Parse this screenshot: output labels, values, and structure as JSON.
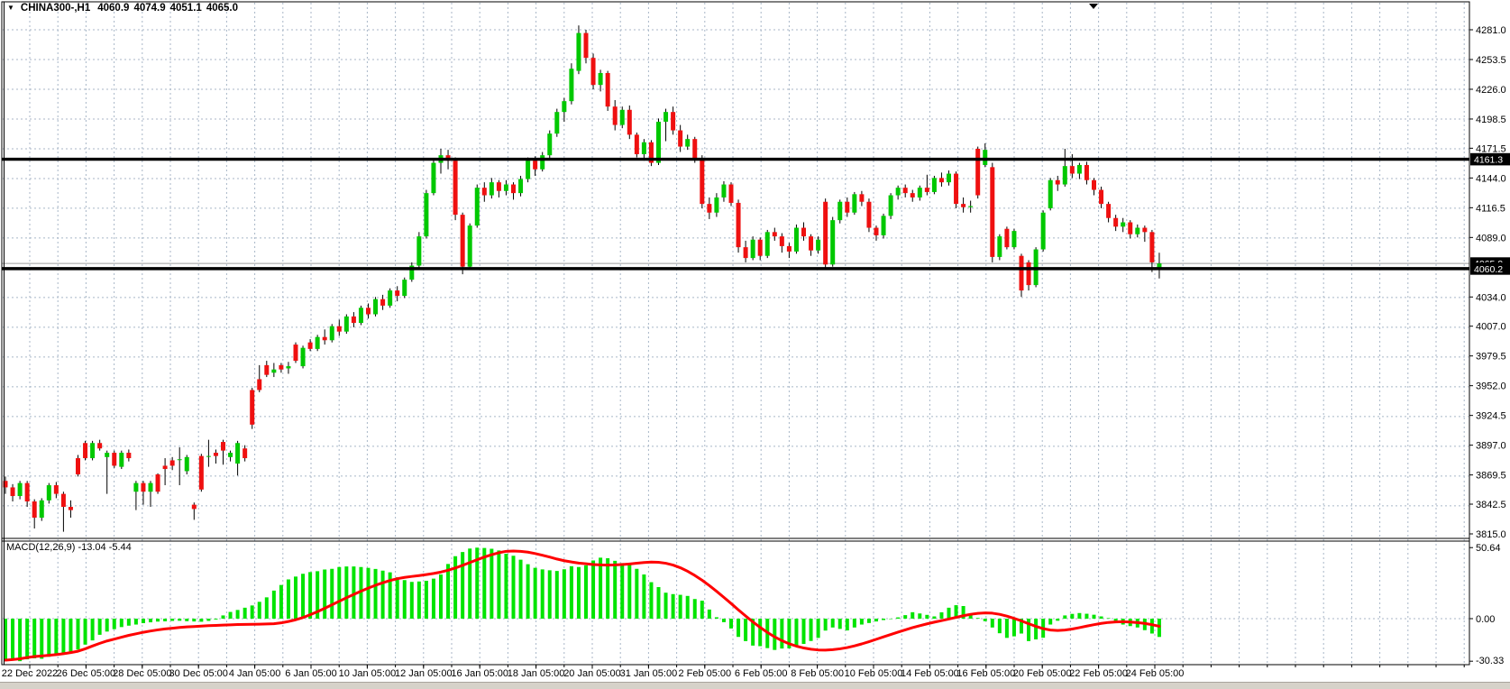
{
  "title_bar": {
    "dropdown_icon": "▼",
    "symbol_period": "CHINA300-,H1",
    "open": "4060.9",
    "high": "4074.9",
    "low": "4051.1",
    "close": "4065.0"
  },
  "indicator": {
    "label": "MACD(12,26,9) -13.04 -5.44"
  },
  "colors": {
    "background": "#ffffff",
    "grid": "#a8b6c7",
    "bull": "#00c800",
    "bear": "#ef1010",
    "wick": "#000000",
    "macd_histogram": "#00e400",
    "macd_signal": "#ff0000",
    "hline": "#000000",
    "last_price_line": "#9e9e9e",
    "badge_bg": "#000000",
    "badge_fg": "#ffffff",
    "window_strip": "#d6d2c9"
  },
  "price_axis": {
    "tick_texts": [
      "4281.0",
      "4253.5",
      "4226.0",
      "4198.5",
      "4171.5",
      "4144.0",
      "4116.5",
      "4089.0",
      "4034.0",
      "4007.0",
      "3979.5",
      "3952.0",
      "3924.5",
      "3897.0",
      "3869.5",
      "3842.5",
      "3815.0"
    ],
    "tick_values": [
      4281.0,
      4253.5,
      4226.0,
      4198.5,
      4171.5,
      4144.0,
      4116.5,
      4089.0,
      4034.0,
      4007.0,
      3979.5,
      3952.0,
      3924.5,
      3897.0,
      3869.5,
      3842.5,
      3815.0
    ]
  },
  "macd_axis": {
    "tick_texts": [
      "50.64",
      "0.00",
      "-30.33"
    ],
    "tick_values": [
      50.64,
      0.0,
      -30.33
    ]
  },
  "time_axis": {
    "labels": [
      "22 Dec 2022",
      "26 Dec 05:00",
      "28 Dec 05:00",
      "30 Dec 05:00",
      "4 Jan 05:00",
      "6 Jan 05:00",
      "10 Jan 05:00",
      "12 Jan 05:00",
      "16 Jan 05:00",
      "18 Jan 05:00",
      "20 Jan 05:00",
      "31 Jan 05:00",
      "2 Feb 05:00",
      "6 Feb 05:00",
      "8 Feb 05:00",
      "10 Feb 05:00",
      "14 Feb 05:00",
      "16 Feb 05:00",
      "20 Feb 05:00",
      "22 Feb 05:00",
      "24 Feb 05:00"
    ]
  },
  "chart_data": {
    "type": "candlestick+macd",
    "symbol": "CHINA300",
    "timeframe": "H1",
    "title": "CHINA300-,H1  4060.9 4074.9 4051.1 4065.0",
    "price_range_visible": [
      3815.0,
      4281.0
    ],
    "price_grid_step": 27.5,
    "macd_range": [
      -30.33,
      50.64
    ],
    "grid": true,
    "horizontal_lines": [
      {
        "label": "4161.3",
        "price": 4161.3,
        "style": "thick-black"
      },
      {
        "label": "4065.0",
        "price": 4065.0,
        "style": "thin-gray-last-price"
      },
      {
        "label": "4060.2",
        "price": 4060.2,
        "style": "thick-black"
      }
    ],
    "candles": [
      [
        3864,
        3868,
        3852,
        3858
      ],
      [
        3858,
        3861,
        3845,
        3850
      ],
      [
        3850,
        3864,
        3847,
        3862
      ],
      [
        3862,
        3864,
        3840,
        3845
      ],
      [
        3845,
        3847,
        3820,
        3830
      ],
      [
        3830,
        3848,
        3827,
        3846
      ],
      [
        3846,
        3862,
        3843,
        3860
      ],
      [
        3860,
        3863,
        3848,
        3852
      ],
      [
        3852,
        3854,
        3817,
        3840
      ],
      [
        3840,
        3846,
        3830,
        3837
      ],
      [
        3885,
        3888,
        3868,
        3870
      ],
      [
        3899,
        3901,
        3883,
        3885
      ],
      [
        3885,
        3901,
        3883,
        3899
      ],
      [
        3899,
        3902,
        3892,
        3894
      ],
      [
        3886,
        3892,
        3852,
        3890
      ],
      [
        3890,
        3892,
        3876,
        3878
      ],
      [
        3877,
        3892,
        3875,
        3890
      ],
      [
        3890,
        3893,
        3882,
        3885
      ],
      [
        3854,
        3864,
        3837,
        3862
      ],
      [
        3862,
        3864,
        3842,
        3854
      ],
      [
        3854,
        3864,
        3840,
        3862
      ],
      [
        3870,
        3871,
        3852,
        3854
      ],
      [
        3878,
        3885,
        3860,
        3875
      ],
      [
        3883,
        3886,
        3874,
        3878
      ],
      [
        3884,
        3895,
        3860,
        3884
      ],
      [
        3873,
        3888,
        3870,
        3886
      ],
      [
        3842,
        3844,
        3828,
        3838
      ],
      [
        3887,
        3889,
        3854,
        3856
      ],
      [
        3887,
        3902,
        3877,
        3887
      ],
      [
        3890,
        3893,
        3880,
        3887
      ],
      [
        3900,
        3902,
        3879,
        3892
      ],
      [
        3886,
        3892,
        3882,
        3890
      ],
      [
        3880,
        3901,
        3869,
        3899
      ],
      [
        3894,
        3897,
        3882,
        3885
      ],
      [
        3948,
        3950,
        3912,
        3916
      ],
      [
        3958,
        3971,
        3946,
        3948
      ],
      [
        3971,
        3975,
        3960,
        3962
      ],
      [
        3964,
        3973,
        3960,
        3967
      ],
      [
        3971,
        3973,
        3964,
        3967
      ],
      [
        3968,
        3974,
        3963,
        3970
      ],
      [
        3990,
        3992,
        3973,
        3975
      ],
      [
        3970,
        3989,
        3968,
        3987
      ],
      [
        3992,
        3995,
        3984,
        3986
      ],
      [
        3986,
        3999,
        3984,
        3997
      ],
      [
        3997,
        4004,
        3990,
        3994
      ],
      [
        3994,
        4009,
        3992,
        4007
      ],
      [
        4007,
        4013,
        3998,
        4002
      ],
      [
        4002,
        4018,
        4000,
        4016
      ],
      [
        4016,
        4020,
        4006,
        4010
      ],
      [
        4010,
        4026,
        4008,
        4024
      ],
      [
        4024,
        4028,
        4014,
        4018
      ],
      [
        4018,
        4034,
        4016,
        4032
      ],
      [
        4032,
        4036,
        4022,
        4026
      ],
      [
        4026,
        4042,
        4024,
        4040
      ],
      [
        4040,
        4044,
        4030,
        4035
      ],
      [
        4035,
        4052,
        4033,
        4050
      ],
      [
        4050,
        4066,
        4048,
        4063
      ],
      [
        4063,
        4094,
        4060,
        4090
      ],
      [
        4090,
        4133,
        4088,
        4130
      ],
      [
        4130,
        4162,
        4128,
        4158
      ],
      [
        4158,
        4171,
        4148,
        4165
      ],
      [
        4165,
        4170,
        4152,
        4160
      ],
      [
        4160,
        4163,
        4105,
        4110
      ],
      [
        4110,
        4112,
        4055,
        4062
      ],
      [
        4062,
        4102,
        4060,
        4100
      ],
      [
        4100,
        4138,
        4098,
        4135
      ],
      [
        4135,
        4140,
        4122,
        4128
      ],
      [
        4128,
        4144,
        4125,
        4140
      ],
      [
        4140,
        4142,
        4126,
        4132
      ],
      [
        4132,
        4142,
        4128,
        4138
      ],
      [
        4138,
        4140,
        4124,
        4130
      ],
      [
        4130,
        4146,
        4127,
        4143
      ],
      [
        4143,
        4163,
        4140,
        4160
      ],
      [
        4160,
        4164,
        4146,
        4152
      ],
      [
        4152,
        4168,
        4150,
        4165
      ],
      [
        4165,
        4188,
        4162,
        4185
      ],
      [
        4185,
        4208,
        4182,
        4205
      ],
      [
        4205,
        4218,
        4196,
        4215
      ],
      [
        4215,
        4250,
        4212,
        4245
      ],
      [
        4243,
        4285,
        4240,
        4278
      ],
      [
        4278,
        4281,
        4250,
        4255
      ],
      [
        4255,
        4259,
        4226,
        4230
      ],
      [
        4230,
        4244,
        4224,
        4241
      ],
      [
        4241,
        4243,
        4206,
        4210
      ],
      [
        4210,
        4216,
        4188,
        4193
      ],
      [
        4193,
        4210,
        4190,
        4207
      ],
      [
        4207,
        4211,
        4180,
        4184
      ],
      [
        4184,
        4186,
        4163,
        4166
      ],
      [
        4166,
        4180,
        4160,
        4177
      ],
      [
        4177,
        4179,
        4155,
        4158
      ],
      [
        4158,
        4199,
        4156,
        4196
      ],
      [
        4196,
        4208,
        4178,
        4205
      ],
      [
        4205,
        4210,
        4184,
        4188
      ],
      [
        4188,
        4193,
        4168,
        4173
      ],
      [
        4173,
        4184,
        4170,
        4180
      ],
      [
        4180,
        4182,
        4158,
        4162
      ],
      [
        4162,
        4165,
        4116,
        4120
      ],
      [
        4120,
        4126,
        4106,
        4112
      ],
      [
        4112,
        4130,
        4108,
        4126
      ],
      [
        4126,
        4141,
        4122,
        4138
      ],
      [
        4138,
        4140,
        4118,
        4121
      ],
      [
        4121,
        4124,
        4075,
        4080
      ],
      [
        4080,
        4086,
        4066,
        4070
      ],
      [
        4070,
        4090,
        4068,
        4087
      ],
      [
        4087,
        4089,
        4068,
        4072
      ],
      [
        4072,
        4096,
        4070,
        4094
      ],
      [
        4094,
        4098,
        4086,
        4090
      ],
      [
        4090,
        4093,
        4075,
        4081
      ],
      [
        4081,
        4084,
        4070,
        4076
      ],
      [
        4076,
        4101,
        4074,
        4098
      ],
      [
        4098,
        4103,
        4086,
        4090
      ],
      [
        4090,
        4092,
        4072,
        4077
      ],
      [
        4077,
        4090,
        4074,
        4087
      ],
      [
        4122,
        4125,
        4060,
        4064
      ],
      [
        4064,
        4108,
        4062,
        4105
      ],
      [
        4105,
        4124,
        4102,
        4122
      ],
      [
        4122,
        4126,
        4108,
        4112
      ],
      [
        4112,
        4131,
        4110,
        4129
      ],
      [
        4129,
        4132,
        4118,
        4122
      ],
      [
        4122,
        4125,
        4094,
        4098
      ],
      [
        4098,
        4100,
        4086,
        4091
      ],
      [
        4091,
        4111,
        4088,
        4109
      ],
      [
        4109,
        4130,
        4106,
        4128
      ],
      [
        4128,
        4137,
        4124,
        4135
      ],
      [
        4135,
        4138,
        4126,
        4130
      ],
      [
        4130,
        4133,
        4122,
        4126
      ],
      [
        4126,
        4137,
        4123,
        4135
      ],
      [
        4135,
        4147,
        4128,
        4131
      ],
      [
        4131,
        4146,
        4129,
        4144
      ],
      [
        4144,
        4149,
        4136,
        4140
      ],
      [
        4140,
        4151,
        4137,
        4148
      ],
      [
        4148,
        4150,
        4116,
        4120
      ],
      [
        4120,
        4126,
        4112,
        4117
      ],
      [
        4117,
        4123,
        4112,
        4118
      ],
      [
        4171,
        4173,
        4125,
        4128
      ],
      [
        4156,
        4176,
        4154,
        4170
      ],
      [
        4154,
        4158,
        4066,
        4071
      ],
      [
        4071,
        4092,
        4068,
        4090
      ],
      [
        4097,
        4099,
        4078,
        4080
      ],
      [
        4080,
        4097,
        4078,
        4095
      ],
      [
        4072,
        4074,
        4034,
        4040
      ],
      [
        4066,
        4068,
        4040,
        4045
      ],
      [
        4045,
        4080,
        4043,
        4078
      ],
      [
        4078,
        4114,
        4076,
        4112
      ],
      [
        4116,
        4144,
        4114,
        4142
      ],
      [
        4142,
        4146,
        4132,
        4138
      ],
      [
        4138,
        4171,
        4136,
        4155
      ],
      [
        4155,
        4166,
        4144,
        4148
      ],
      [
        4148,
        4158,
        4143,
        4156
      ],
      [
        4156,
        4159,
        4138,
        4142
      ],
      [
        4142,
        4144,
        4128,
        4133
      ],
      [
        4133,
        4136,
        4116,
        4120
      ],
      [
        4120,
        4122,
        4103,
        4107
      ],
      [
        4107,
        4110,
        4095,
        4099
      ],
      [
        4099,
        4107,
        4094,
        4103
      ],
      [
        4103,
        4105,
        4088,
        4092
      ],
      [
        4092,
        4101,
        4089,
        4098
      ],
      [
        4098,
        4100,
        4085,
        4094
      ],
      [
        4094,
        4096,
        4057,
        4066
      ],
      [
        4060.9,
        4074.9,
        4051.1,
        4065.0
      ]
    ],
    "macd": {
      "label": "MACD(12,26,9) -13.04 -5.44",
      "last_macd": -13.04,
      "last_signal": -5.44,
      "histogram": [
        -29.0,
        -29.5,
        -30.3,
        -29.0,
        -28.3,
        -28.6,
        -27.2,
        -26.0,
        -25.1,
        -24.0,
        -22.0,
        -18.5,
        -15.5,
        -11.5,
        -9.2,
        -7.5,
        -6.0,
        -5.0,
        -4.2,
        -3.2,
        -2.6,
        -2.1,
        -1.9,
        -1.6,
        -1.5,
        -1.8,
        -2.0,
        -2.2,
        -1.6,
        -0.6,
        2.3,
        4.8,
        6.2,
        7.8,
        9.4,
        12.0,
        15.2,
        20.0,
        24.0,
        28.0,
        30.0,
        32.0,
        33.2,
        33.8,
        35.0,
        35.5,
        36.8,
        37.2,
        37.2,
        36.8,
        36.2,
        35.4,
        34.2,
        33.0,
        29.5,
        27.5,
        26.2,
        26.5,
        27.0,
        28.5,
        31.5,
        39.0,
        44.5,
        47.5,
        50.0,
        50.6,
        50.4,
        49.8,
        48.6,
        46.3,
        44.8,
        42.0,
        38.8,
        36.2,
        35.1,
        34.5,
        34.0,
        35.2,
        37.4,
        36.8,
        38.0,
        41.5,
        43.5,
        43.1,
        41.2,
        39.6,
        38.4,
        35.5,
        31.5,
        26.0,
        22.5,
        18.5,
        17.5,
        17.0,
        16.2,
        14.0,
        12.8,
        6.5,
        1.0,
        -2.5,
        -7.0,
        -13.0,
        -16.0,
        -19.2,
        -19.6,
        -21.0,
        -22.3,
        -21.3,
        -21.2,
        -19.2,
        -18.0,
        -15.9,
        -13.7,
        -8.5,
        -6.3,
        -7.3,
        -8.4,
        -6.3,
        -4.2,
        -3.1,
        -2.0,
        -1.0,
        -0.3,
        0.9,
        2.5,
        4.6,
        3.7,
        2.7,
        1.6,
        4.5,
        7.8,
        9.6,
        9.0,
        3.3,
        0.5,
        -1.8,
        -6.3,
        -10.4,
        -13.7,
        -12.6,
        -10.6,
        -16.0,
        -14.8,
        -13.6,
        -4.2,
        -1.5,
        2.3,
        3.4,
        4.0,
        3.5,
        2.8,
        1.6,
        0.4,
        -3.2,
        -4.2,
        -5.3,
        -6.3,
        -8.2,
        -10.6,
        -13.04
      ],
      "signal": [
        -29.6,
        -29.2,
        -28.6,
        -27.7,
        -27.0,
        -26.6,
        -26.1,
        -25.6,
        -25.0,
        -24.2,
        -23.2,
        -21.5,
        -19.5,
        -17.6,
        -15.9,
        -14.6,
        -13.2,
        -11.9,
        -10.8,
        -9.7,
        -8.8,
        -8.0,
        -7.3,
        -6.8,
        -6.3,
        -5.9,
        -5.6,
        -5.3,
        -5.0,
        -4.8,
        -4.6,
        -4.4,
        -4.2,
        -4.1,
        -4.0,
        -3.9,
        -3.8,
        -3.6,
        -3.0,
        -2.0,
        -0.8,
        0.8,
        2.8,
        5.0,
        7.4,
        9.9,
        12.4,
        14.9,
        17.3,
        19.6,
        21.8,
        23.8,
        25.6,
        27.2,
        28.5,
        29.4,
        30.1,
        30.7,
        31.4,
        32.2,
        33.2,
        34.5,
        36.1,
        38.0,
        40.0,
        42.0,
        43.9,
        45.6,
        47.0,
        48.0,
        48.2,
        48.0,
        47.4,
        46.4,
        45.2,
        43.9,
        42.5,
        41.3,
        40.4,
        39.6,
        39.1,
        38.6,
        38.3,
        38.2,
        38.3,
        38.6,
        39.0,
        39.5,
        40.0,
        40.3,
        40.2,
        39.5,
        38.2,
        36.3,
        33.8,
        30.8,
        27.4,
        23.6,
        19.5,
        15.2,
        10.8,
        6.3,
        1.9,
        -2.3,
        -6.2,
        -9.8,
        -13.0,
        -15.7,
        -17.9,
        -19.6,
        -20.9,
        -21.8,
        -22.3,
        -22.4,
        -22.1,
        -21.5,
        -20.6,
        -19.4,
        -18.0,
        -16.4,
        -14.7,
        -13.0,
        -11.3,
        -9.6,
        -8.0,
        -6.4,
        -5.0,
        -3.7,
        -2.5,
        -1.4,
        -0.3,
        0.9,
        2.1,
        3.1,
        3.8,
        4.1,
        3.9,
        3.1,
        1.8,
        0.2,
        -1.6,
        -3.6,
        -5.5,
        -7.1,
        -8.1,
        -8.4,
        -8.1,
        -7.4,
        -6.4,
        -5.3,
        -4.3,
        -3.4,
        -2.7,
        -2.3,
        -2.2,
        -2.4,
        -2.8,
        -3.4,
        -4.3,
        -5.44
      ]
    }
  }
}
